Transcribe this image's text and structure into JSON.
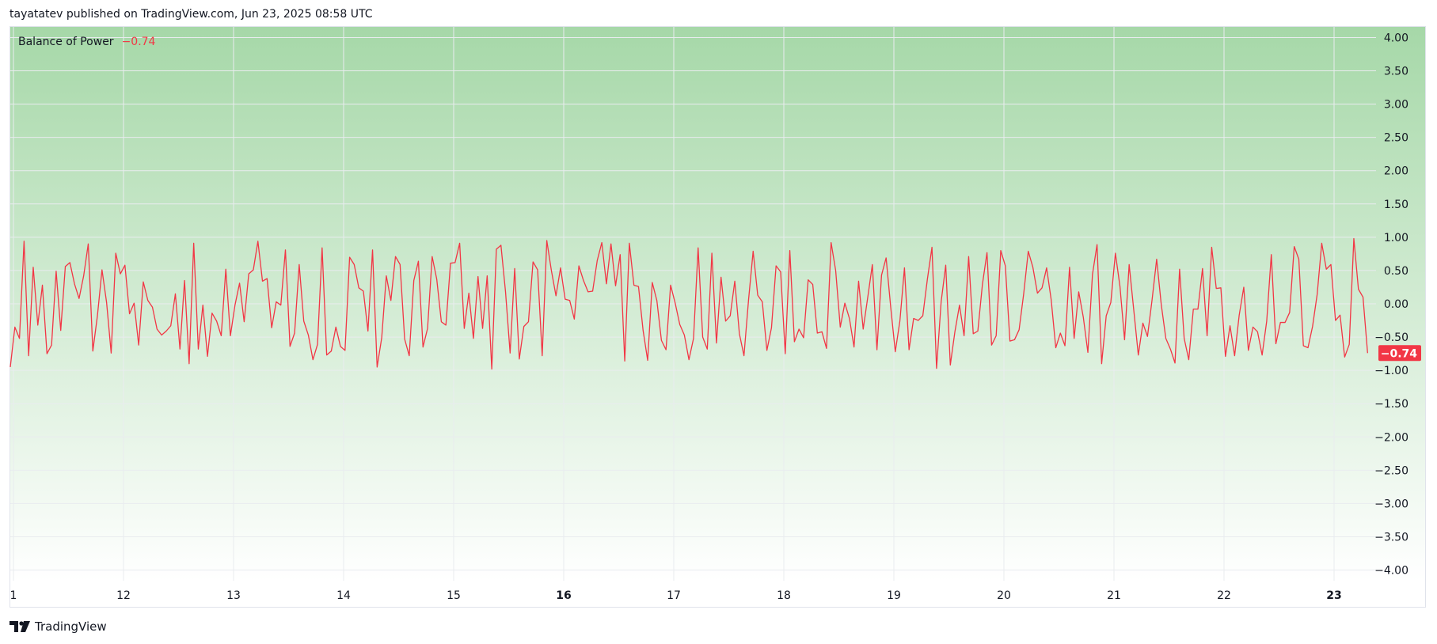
{
  "header": {
    "publish_text": "tayatatev published on TradingView.com, Jun 23, 2025 08:58 UTC"
  },
  "legend": {
    "indicator_name": "Balance of Power",
    "value": "−0.74"
  },
  "footer": {
    "brand": "TradingView",
    "logo_icon": "tradingview-logo-icon"
  },
  "colors": {
    "line": "#f23645",
    "badge": "#f23645",
    "gradient_top": "#a6d8a8",
    "gradient_bottom": "#ffffff",
    "grid": "#e9ecef",
    "axis_text": "#131722"
  },
  "chart_data": {
    "type": "line",
    "title": "",
    "xlabel": "",
    "ylabel": "",
    "ylim": [
      -4.16,
      4.16
    ],
    "xlim": [
      0,
      12.87
    ],
    "y_ticks": [
      "4.00",
      "3.50",
      "3.00",
      "2.50",
      "2.00",
      "1.50",
      "1.00",
      "0.50",
      "0.00",
      "−0.50",
      "−1.00",
      "−1.50",
      "−2.00",
      "−2.50",
      "−3.00",
      "−3.50",
      "−4.00"
    ],
    "y_tick_values": [
      4,
      3.5,
      3,
      2.5,
      2,
      1.5,
      1,
      0.5,
      0,
      -0.5,
      -1,
      -1.5,
      -2,
      -2.5,
      -3,
      -3.5,
      -4
    ],
    "x_ticks": [
      {
        "label": "1",
        "pos": 0,
        "bold": false
      },
      {
        "label": "12",
        "pos": 1,
        "bold": false
      },
      {
        "label": "13",
        "pos": 2,
        "bold": false
      },
      {
        "label": "14",
        "pos": 3,
        "bold": false
      },
      {
        "label": "15",
        "pos": 4,
        "bold": false
      },
      {
        "label": "16",
        "pos": 5,
        "bold": true
      },
      {
        "label": "17",
        "pos": 6,
        "bold": false
      },
      {
        "label": "18",
        "pos": 7,
        "bold": false
      },
      {
        "label": "19",
        "pos": 8,
        "bold": false
      },
      {
        "label": "20",
        "pos": 9,
        "bold": false
      },
      {
        "label": "21",
        "pos": 10,
        "bold": false
      },
      {
        "label": "22",
        "pos": 11,
        "bold": false
      },
      {
        "label": "23",
        "pos": 12,
        "bold": true
      }
    ],
    "series": [
      {
        "color": "#f23645",
        "points_per_day": 24,
        "last_value_label": "−0.74",
        "values": [
          -0.95,
          -0.35,
          -0.52,
          0.94,
          -0.78,
          0.55,
          -0.32,
          0.28,
          -0.75,
          -0.62,
          0.49,
          -0.4,
          0.56,
          0.62,
          0.3,
          0.08,
          0.42,
          0.9,
          -0.71,
          -0.18,
          0.51,
          0.02,
          -0.74,
          0.76,
          0.45,
          0.58,
          -0.15,
          0.01,
          -0.62,
          0.33,
          0.05,
          -0.05,
          -0.38,
          -0.47,
          -0.41,
          -0.33,
          0.15,
          -0.68,
          0.35,
          -0.9,
          0.91,
          -0.68,
          -0.02,
          -0.79,
          -0.14,
          -0.26,
          -0.48,
          0.52,
          -0.48,
          -0.02,
          0.31,
          -0.27,
          0.45,
          0.51,
          0.94,
          0.34,
          0.38,
          -0.36,
          0.03,
          -0.02,
          0.81,
          -0.64,
          -0.44,
          0.59,
          -0.26,
          -0.47,
          -0.84,
          -0.61,
          0.84,
          -0.77,
          -0.71,
          -0.35,
          -0.64,
          -0.7,
          0.7,
          0.59,
          0.24,
          0.19,
          -0.41,
          0.81,
          -0.95,
          -0.51,
          0.42,
          0.05,
          0.71,
          0.59,
          -0.53,
          -0.78,
          0.35,
          0.64,
          -0.65,
          -0.37,
          0.71,
          0.37,
          -0.27,
          -0.32,
          0.61,
          0.62,
          0.91,
          -0.37,
          0.16,
          -0.52,
          0.41,
          -0.37,
          0.42,
          -0.98,
          0.82,
          0.88,
          0.18,
          -0.74,
          0.53,
          -0.83,
          -0.34,
          -0.27,
          0.63,
          0.51,
          -0.78,
          0.95,
          0.5,
          0.12,
          0.54,
          0.07,
          0.05,
          -0.23,
          0.57,
          0.35,
          0.18,
          0.19,
          0.65,
          0.92,
          0.3,
          0.9,
          0.27,
          0.74,
          -0.86,
          0.91,
          0.28,
          0.26,
          -0.4,
          -0.85,
          0.32,
          0.05,
          -0.55,
          -0.69,
          0.28,
          0.01,
          -0.31,
          -0.47,
          -0.84,
          -0.52,
          0.84,
          -0.5,
          -0.68,
          0.76,
          -0.59,
          0.4,
          -0.26,
          -0.18,
          0.34,
          -0.45,
          -0.78,
          0.06,
          0.79,
          0.13,
          0.03,
          -0.7,
          -0.36,
          0.57,
          0.48,
          -0.75,
          0.8,
          -0.57,
          -0.38,
          -0.51,
          0.36,
          0.29,
          -0.44,
          -0.42,
          -0.67,
          0.92,
          0.5,
          -0.35,
          0.01,
          -0.22,
          -0.65,
          0.34,
          -0.38,
          0.1,
          0.59,
          -0.69,
          0.43,
          0.69,
          -0.05,
          -0.72,
          -0.26,
          0.54,
          -0.69,
          -0.22,
          -0.25,
          -0.18,
          0.37,
          0.85,
          -0.97,
          0.03,
          0.58,
          -0.92,
          -0.42,
          -0.02,
          -0.48,
          0.71,
          -0.45,
          -0.41,
          0.29,
          0.77,
          -0.62,
          -0.48,
          0.8,
          0.57,
          -0.56,
          -0.54,
          -0.39,
          0.15,
          0.79,
          0.55,
          0.16,
          0.24,
          0.54,
          0.06,
          -0.66,
          -0.44,
          -0.63,
          0.55,
          -0.52,
          0.18,
          -0.2,
          -0.73,
          0.44,
          0.89,
          -0.9,
          -0.18,
          0.02,
          0.76,
          0.26,
          -0.54,
          0.59,
          -0.09,
          -0.77,
          -0.29,
          -0.49,
          0.06,
          0.67,
          -0.01,
          -0.52,
          -0.68,
          -0.89,
          0.52,
          -0.52,
          -0.84,
          -0.08,
          -0.08,
          0.53,
          -0.48,
          0.85,
          0.23,
          0.24,
          -0.79,
          -0.33,
          -0.78,
          -0.17,
          0.25,
          -0.7,
          -0.35,
          -0.42,
          -0.77,
          -0.26,
          0.74,
          -0.6,
          -0.28,
          -0.28,
          -0.13,
          0.86,
          0.67,
          -0.63,
          -0.66,
          -0.34,
          0.14,
          0.91,
          0.52,
          0.59,
          -0.25,
          -0.17,
          -0.8,
          -0.61,
          0.98,
          0.22,
          0.1,
          -0.74
        ]
      }
    ]
  }
}
